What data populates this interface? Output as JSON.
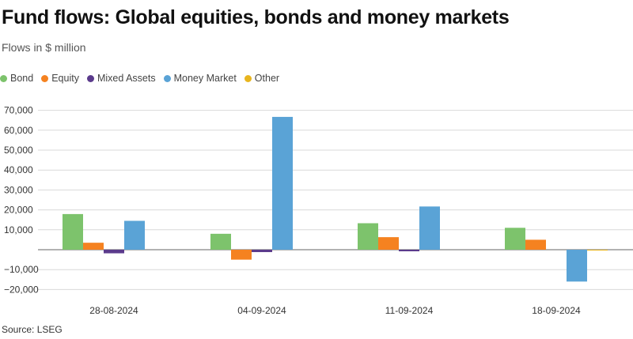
{
  "title": "Fund flows: Global equities, bonds and money markets",
  "subtitle": "Flows in $ million",
  "source": "Source: LSEG",
  "colors": {
    "Bond": "#7dc36c",
    "Equity": "#f58220",
    "Mixed Assets": "#5b3b8c",
    "Money Market": "#5aa3d6",
    "Other": "#e8b51e"
  },
  "chart_data": {
    "type": "bar",
    "categories": [
      "28-08-2024",
      "04-09-2024",
      "11-09-2024",
      "18-09-2024"
    ],
    "series": [
      {
        "name": "Bond",
        "values": [
          17900,
          8000,
          13300,
          11000
        ]
      },
      {
        "name": "Equity",
        "values": [
          3500,
          -5000,
          6300,
          5000
        ]
      },
      {
        "name": "Mixed Assets",
        "values": [
          -1800,
          -1200,
          -800,
          0
        ]
      },
      {
        "name": "Money Market",
        "values": [
          14500,
          66700,
          21700,
          -16000
        ]
      },
      {
        "name": "Other",
        "values": [
          0,
          0,
          0,
          -300
        ]
      }
    ],
    "yticks": [
      -20000,
      -10000,
      0,
      10000,
      20000,
      30000,
      40000,
      50000,
      60000,
      70000
    ],
    "ytick_labels": [
      "−20,000",
      "−10,000",
      "",
      "10,000",
      "20,000",
      "30,000",
      "40,000",
      "50,000",
      "60,000",
      "70,000"
    ],
    "ylim": [
      -20000,
      70000
    ],
    "grid": true,
    "legend_position": "top-left"
  }
}
